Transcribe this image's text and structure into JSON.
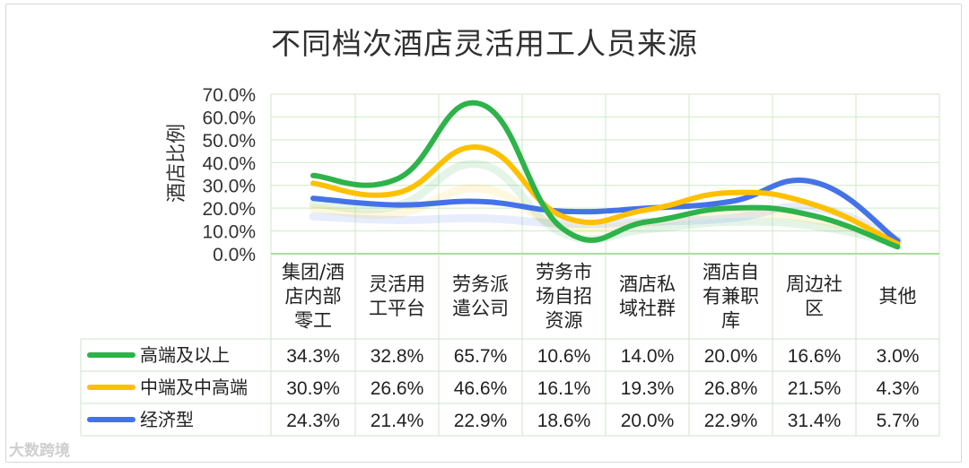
{
  "title": "不同档次酒店灵活用工人员来源",
  "watermark": "大数跨境",
  "chart_data": {
    "type": "line",
    "title": "不同档次酒店灵活用工人员来源",
    "ylabel": "酒店比例",
    "ylim": [
      0,
      70
    ],
    "y_ticks": [
      "0.0%",
      "10.0%",
      "20.0%",
      "30.0%",
      "40.0%",
      "50.0%",
      "60.0%",
      "70.0%"
    ],
    "grid": true,
    "legend": "table-left",
    "categories": [
      [
        "集团/酒",
        "店内部",
        "零工"
      ],
      [
        "灵活用",
        "工平台"
      ],
      [
        "劳务派",
        "遣公司"
      ],
      [
        "劳务市",
        "场自招",
        "资源"
      ],
      [
        "酒店私",
        "域社群"
      ],
      [
        "酒店自",
        "有兼职",
        "库"
      ],
      [
        "周边社",
        "区"
      ],
      [
        "其他"
      ]
    ],
    "series": [
      {
        "name": "高端及以上",
        "color": "#2db34a",
        "values": [
          34.3,
          32.8,
          65.7,
          10.6,
          14.0,
          20.0,
          16.6,
          3.0
        ],
        "labels": [
          "34.3%",
          "32.8%",
          "65.7%",
          "10.6%",
          "14.0%",
          "20.0%",
          "16.6%",
          "3.0%"
        ]
      },
      {
        "name": "中端及中高端",
        "color": "#ffc000",
        "values": [
          30.9,
          26.6,
          46.6,
          16.1,
          19.3,
          26.8,
          21.5,
          4.3
        ],
        "labels": [
          "30.9%",
          "26.6%",
          "46.6%",
          "16.1%",
          "19.3%",
          "26.8%",
          "21.5%",
          "4.3%"
        ]
      },
      {
        "name": "经济型",
        "color": "#4472e8",
        "values": [
          24.3,
          21.4,
          22.9,
          18.6,
          20.0,
          22.9,
          31.4,
          5.7
        ],
        "labels": [
          "24.3%",
          "21.4%",
          "22.9%",
          "18.6%",
          "20.0%",
          "22.9%",
          "31.4%",
          "5.7%"
        ]
      }
    ]
  }
}
